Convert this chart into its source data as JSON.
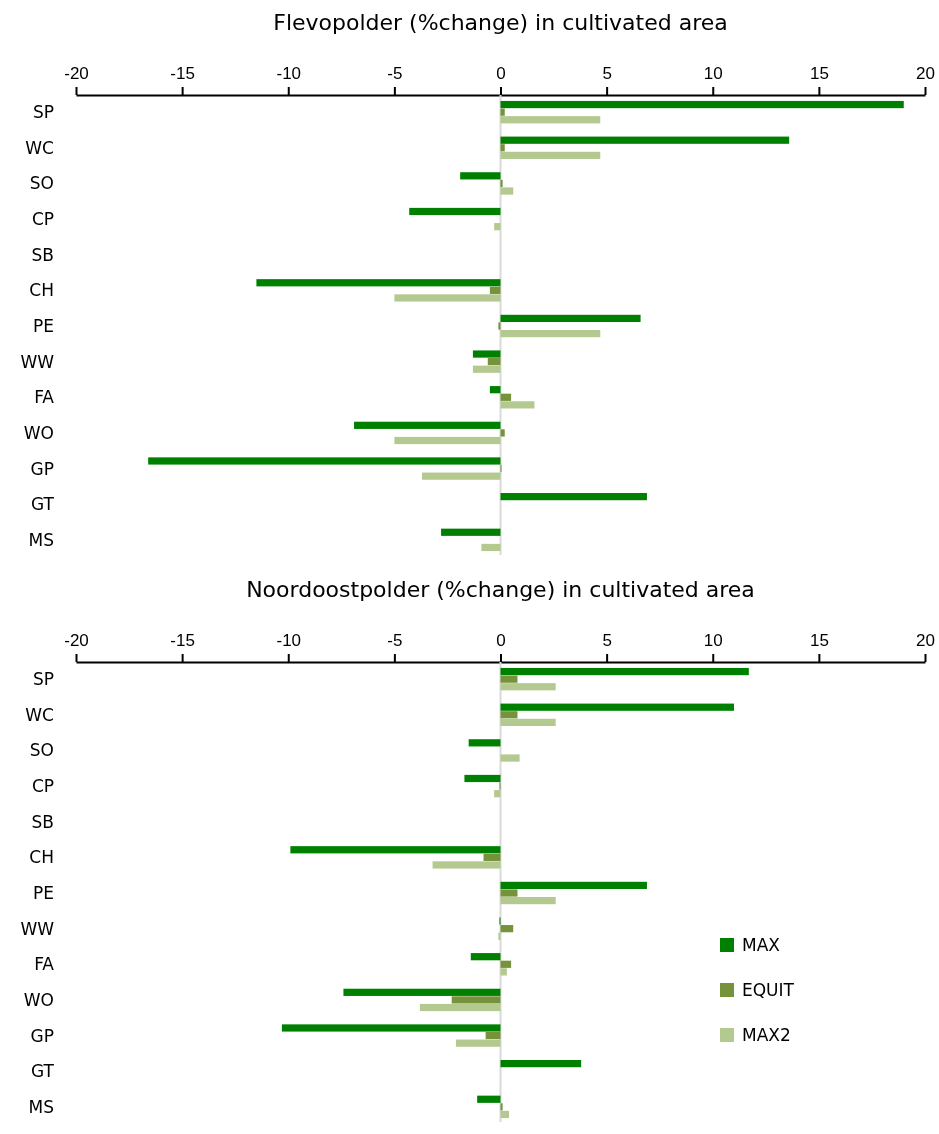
{
  "chart_data": [
    {
      "type": "bar",
      "orientation": "horizontal",
      "title": "Flevopolder (%change) in cultivated area",
      "categories": [
        "SP",
        "WC",
        "SO",
        "CP",
        "SB",
        "CH",
        "PE",
        "WW",
        "FA",
        "WO",
        "GP",
        "GT",
        "MS"
      ],
      "xlim": [
        -20,
        20
      ],
      "xticks": [
        -20,
        -15,
        -10,
        -5,
        0,
        5,
        10,
        15,
        20
      ],
      "legend": false,
      "series": [
        {
          "color": "#008000",
          "values": [
            19.0,
            13.6,
            -1.9,
            -4.3,
            null,
            -11.5,
            6.6,
            -1.3,
            -0.5,
            -6.9,
            -16.6,
            6.9,
            -2.8
          ]
        },
        {
          "color": "#76933c",
          "values": [
            0.2,
            0.2,
            0.1,
            null,
            null,
            -0.5,
            -0.1,
            -0.6,
            0.5,
            0.2,
            0.05,
            null,
            null
          ]
        },
        {
          "color": "#b3c98f",
          "values": [
            4.7,
            4.7,
            0.6,
            -0.3,
            null,
            -5.0,
            4.7,
            -1.3,
            1.6,
            -5.0,
            -3.7,
            null,
            -0.9
          ]
        }
      ]
    },
    {
      "type": "bar",
      "orientation": "horizontal",
      "title": "Noordoostpolder (%change) in cultivated area",
      "categories": [
        "SP",
        "WC",
        "SO",
        "CP",
        "SB",
        "CH",
        "PE",
        "WW",
        "FA",
        "WO",
        "GP",
        "GT",
        "MS"
      ],
      "xlim": [
        -20,
        20
      ],
      "xticks": [
        -20,
        -15,
        -10,
        -5,
        0,
        5,
        10,
        15,
        20
      ],
      "legend": "right",
      "series": [
        {
          "name": "MAX",
          "color": "#008000",
          "values": [
            11.7,
            11.0,
            -1.5,
            -1.7,
            null,
            -9.9,
            6.9,
            -0.05,
            -1.4,
            -7.4,
            -10.3,
            3.8,
            -1.1
          ]
        },
        {
          "name": "EQUIT",
          "color": "#76933c",
          "values": [
            0.8,
            0.8,
            null,
            -0.05,
            null,
            -0.8,
            0.8,
            0.6,
            0.5,
            -2.3,
            -0.7,
            null,
            0.1
          ]
        },
        {
          "name": "MAX2",
          "color": "#b3c98f",
          "values": [
            2.6,
            2.6,
            0.9,
            -0.3,
            null,
            -3.2,
            2.6,
            -0.1,
            0.3,
            -3.8,
            -2.1,
            null,
            0.4
          ]
        }
      ]
    }
  ]
}
